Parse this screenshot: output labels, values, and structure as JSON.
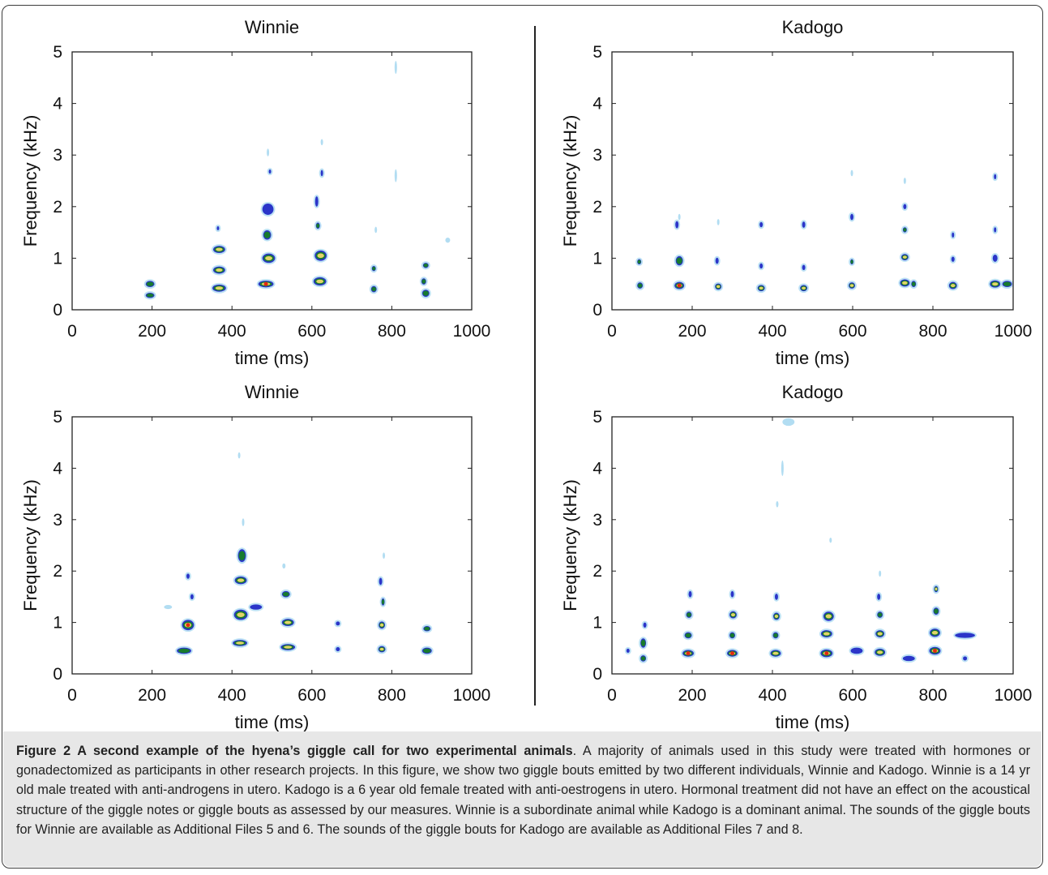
{
  "figure": {
    "caption_title": "Figure 2 A second example of the hyena’s giggle call for two experimental animals",
    "caption_text": ". A majority of animals used in this study were treated with hormones or gonadectomized as participants in other research projects. In this figure, we show two giggle bouts emitted by two different individuals, Winnie and Kadogo. Winnie is a 14 yr old male treated with anti-androgens in utero. Kadogo is a 6 year old female treated with anti-oestrogens in utero. Hormonal treatment did not have an effect on the acoustical structure of the giggle notes or giggle bouts as assessed by our measures. Winnie is a subordinate animal while Kadogo is a dominant animal. The sounds of the giggle bouts for Winnie are available as Additional Files 5 and 6. The sounds of the giggle bouts for Kadogo are available as Additional Files 7 and 8."
  },
  "colors": {
    "blue": "#2b35c9",
    "green": "#177a2e",
    "yellow": "#e3d468",
    "red": "#e22a12",
    "light": "#9fd4ef"
  },
  "chart_data": [
    {
      "type": "heatmap",
      "title": "Winnie",
      "xlabel": "time (ms)",
      "ylabel": "Frequency (kHz)",
      "xlim": [
        0,
        1000
      ],
      "ylim": [
        0,
        5
      ],
      "xticks": [
        0,
        200,
        400,
        600,
        800,
        1000
      ],
      "yticks": [
        0,
        1,
        2,
        3,
        4,
        5
      ],
      "blobs": [
        {
          "t": 195,
          "f": 0.5,
          "w": 22,
          "h": 0.12,
          "level": 2
        },
        {
          "t": 195,
          "f": 0.28,
          "w": 22,
          "h": 0.1,
          "level": 2
        },
        {
          "t": 368,
          "f": 0.42,
          "w": 34,
          "h": 0.14,
          "level": 3
        },
        {
          "t": 368,
          "f": 0.77,
          "w": 30,
          "h": 0.14,
          "level": 3
        },
        {
          "t": 368,
          "f": 1.17,
          "w": 30,
          "h": 0.14,
          "level": 3
        },
        {
          "t": 365,
          "f": 1.58,
          "w": 6,
          "h": 0.08,
          "level": 1
        },
        {
          "t": 485,
          "f": 0.5,
          "w": 38,
          "h": 0.13,
          "level": 4
        },
        {
          "t": 492,
          "f": 1.0,
          "w": 32,
          "h": 0.18,
          "level": 3
        },
        {
          "t": 488,
          "f": 1.45,
          "w": 20,
          "h": 0.18,
          "level": 2
        },
        {
          "t": 490,
          "f": 1.95,
          "w": 28,
          "h": 0.22,
          "level": 1
        },
        {
          "t": 495,
          "f": 2.68,
          "w": 6,
          "h": 0.08,
          "level": 1
        },
        {
          "t": 620,
          "f": 0.55,
          "w": 32,
          "h": 0.16,
          "level": 3
        },
        {
          "t": 622,
          "f": 1.05,
          "w": 30,
          "h": 0.2,
          "level": 3
        },
        {
          "t": 615,
          "f": 1.63,
          "w": 10,
          "h": 0.12,
          "level": 2
        },
        {
          "t": 612,
          "f": 2.1,
          "w": 8,
          "h": 0.2,
          "level": 1
        },
        {
          "t": 625,
          "f": 2.65,
          "w": 6,
          "h": 0.12,
          "level": 1
        },
        {
          "t": 755,
          "f": 0.4,
          "w": 14,
          "h": 0.12,
          "level": 2
        },
        {
          "t": 755,
          "f": 0.8,
          "w": 10,
          "h": 0.1,
          "level": 2
        },
        {
          "t": 885,
          "f": 0.32,
          "w": 18,
          "h": 0.14,
          "level": 2
        },
        {
          "t": 880,
          "f": 0.55,
          "w": 12,
          "h": 0.12,
          "level": 2
        },
        {
          "t": 885,
          "f": 0.86,
          "w": 14,
          "h": 0.1,
          "level": 2
        },
        {
          "t": 810,
          "f": 4.7,
          "w": 4,
          "h": 0.25,
          "level": 0
        },
        {
          "t": 490,
          "f": 3.05,
          "w": 4,
          "h": 0.15,
          "level": 0
        },
        {
          "t": 625,
          "f": 3.25,
          "w": 4,
          "h": 0.12,
          "level": 0
        },
        {
          "t": 810,
          "f": 2.6,
          "w": 4,
          "h": 0.25,
          "level": 0
        },
        {
          "t": 760,
          "f": 1.55,
          "w": 4,
          "h": 0.12,
          "level": 0
        },
        {
          "t": 940,
          "f": 1.35,
          "w": 12,
          "h": 0.1,
          "level": 0
        }
      ]
    },
    {
      "type": "heatmap",
      "title": "Kadogo",
      "xlabel": "time (ms)",
      "ylabel": "Frequency (kHz)",
      "xlim": [
        0,
        1000
      ],
      "ylim": [
        0,
        5
      ],
      "xticks": [
        0,
        200,
        400,
        600,
        800,
        1000
      ],
      "yticks": [
        0,
        1,
        2,
        3,
        4,
        5
      ],
      "blobs": [
        {
          "t": 70,
          "f": 0.47,
          "w": 14,
          "h": 0.12,
          "level": 2
        },
        {
          "t": 68,
          "f": 0.93,
          "w": 10,
          "h": 0.1,
          "level": 2
        },
        {
          "t": 168,
          "f": 0.47,
          "w": 24,
          "h": 0.14,
          "level": 4
        },
        {
          "t": 168,
          "f": 0.95,
          "w": 18,
          "h": 0.18,
          "level": 2
        },
        {
          "t": 162,
          "f": 1.65,
          "w": 8,
          "h": 0.14,
          "level": 1
        },
        {
          "t": 265,
          "f": 0.45,
          "w": 16,
          "h": 0.12,
          "level": 3
        },
        {
          "t": 262,
          "f": 0.95,
          "w": 8,
          "h": 0.12,
          "level": 1
        },
        {
          "t": 372,
          "f": 0.42,
          "w": 18,
          "h": 0.12,
          "level": 3
        },
        {
          "t": 372,
          "f": 0.85,
          "w": 8,
          "h": 0.1,
          "level": 1
        },
        {
          "t": 372,
          "f": 1.65,
          "w": 8,
          "h": 0.1,
          "level": 1
        },
        {
          "t": 478,
          "f": 0.42,
          "w": 18,
          "h": 0.12,
          "level": 3
        },
        {
          "t": 478,
          "f": 0.82,
          "w": 8,
          "h": 0.1,
          "level": 1
        },
        {
          "t": 478,
          "f": 1.65,
          "w": 8,
          "h": 0.12,
          "level": 1
        },
        {
          "t": 598,
          "f": 0.47,
          "w": 16,
          "h": 0.12,
          "level": 3
        },
        {
          "t": 598,
          "f": 0.93,
          "w": 8,
          "h": 0.1,
          "level": 2
        },
        {
          "t": 598,
          "f": 1.8,
          "w": 8,
          "h": 0.12,
          "level": 1
        },
        {
          "t": 730,
          "f": 0.52,
          "w": 24,
          "h": 0.14,
          "level": 3
        },
        {
          "t": 730,
          "f": 1.02,
          "w": 18,
          "h": 0.12,
          "level": 3
        },
        {
          "t": 730,
          "f": 1.55,
          "w": 10,
          "h": 0.1,
          "level": 2
        },
        {
          "t": 730,
          "f": 2.0,
          "w": 8,
          "h": 0.1,
          "level": 1
        },
        {
          "t": 752,
          "f": 0.5,
          "w": 12,
          "h": 0.12,
          "level": 2
        },
        {
          "t": 850,
          "f": 0.47,
          "w": 20,
          "h": 0.14,
          "level": 3
        },
        {
          "t": 850,
          "f": 0.98,
          "w": 8,
          "h": 0.1,
          "level": 1
        },
        {
          "t": 850,
          "f": 1.45,
          "w": 6,
          "h": 0.1,
          "level": 1
        },
        {
          "t": 955,
          "f": 0.5,
          "w": 26,
          "h": 0.14,
          "level": 3
        },
        {
          "t": 955,
          "f": 1.0,
          "w": 12,
          "h": 0.14,
          "level": 1
        },
        {
          "t": 955,
          "f": 1.55,
          "w": 6,
          "h": 0.1,
          "level": 1
        },
        {
          "t": 955,
          "f": 2.58,
          "w": 6,
          "h": 0.1,
          "level": 1
        },
        {
          "t": 985,
          "f": 0.5,
          "w": 24,
          "h": 0.12,
          "level": 2
        },
        {
          "t": 598,
          "f": 2.65,
          "w": 4,
          "h": 0.12,
          "level": 0
        },
        {
          "t": 730,
          "f": 2.5,
          "w": 4,
          "h": 0.12,
          "level": 0
        },
        {
          "t": 168,
          "f": 1.8,
          "w": 6,
          "h": 0.12,
          "level": 0
        },
        {
          "t": 265,
          "f": 1.7,
          "w": 4,
          "h": 0.12,
          "level": 0
        }
      ]
    },
    {
      "type": "heatmap",
      "title": "Winnie",
      "xlabel": "time (ms)",
      "ylabel": "Frequency (kHz)",
      "xlim": [
        0,
        1000
      ],
      "ylim": [
        0,
        5
      ],
      "xticks": [
        0,
        200,
        400,
        600,
        800,
        1000
      ],
      "yticks": [
        0,
        1,
        2,
        3,
        4,
        5
      ],
      "blobs": [
        {
          "t": 290,
          "f": 0.95,
          "w": 30,
          "h": 0.2,
          "level": 4
        },
        {
          "t": 280,
          "f": 0.45,
          "w": 36,
          "h": 0.12,
          "level": 2
        },
        {
          "t": 300,
          "f": 1.5,
          "w": 8,
          "h": 0.1,
          "level": 1
        },
        {
          "t": 290,
          "f": 1.9,
          "w": 8,
          "h": 0.1,
          "level": 1
        },
        {
          "t": 420,
          "f": 0.6,
          "w": 36,
          "h": 0.12,
          "level": 3
        },
        {
          "t": 422,
          "f": 1.15,
          "w": 34,
          "h": 0.2,
          "level": 3
        },
        {
          "t": 422,
          "f": 1.82,
          "w": 30,
          "h": 0.15,
          "level": 3
        },
        {
          "t": 425,
          "f": 2.3,
          "w": 20,
          "h": 0.25,
          "level": 2
        },
        {
          "t": 460,
          "f": 1.3,
          "w": 30,
          "h": 0.1,
          "level": 1
        },
        {
          "t": 540,
          "f": 0.52,
          "w": 36,
          "h": 0.12,
          "level": 3
        },
        {
          "t": 540,
          "f": 1.0,
          "w": 30,
          "h": 0.14,
          "level": 3
        },
        {
          "t": 535,
          "f": 1.55,
          "w": 20,
          "h": 0.12,
          "level": 2
        },
        {
          "t": 665,
          "f": 0.48,
          "w": 10,
          "h": 0.08,
          "level": 1
        },
        {
          "t": 665,
          "f": 0.98,
          "w": 10,
          "h": 0.08,
          "level": 1
        },
        {
          "t": 775,
          "f": 0.48,
          "w": 18,
          "h": 0.12,
          "level": 3
        },
        {
          "t": 775,
          "f": 0.95,
          "w": 16,
          "h": 0.14,
          "level": 3
        },
        {
          "t": 778,
          "f": 1.4,
          "w": 8,
          "h": 0.14,
          "level": 2
        },
        {
          "t": 772,
          "f": 1.8,
          "w": 8,
          "h": 0.14,
          "level": 1
        },
        {
          "t": 888,
          "f": 0.45,
          "w": 24,
          "h": 0.12,
          "level": 2
        },
        {
          "t": 888,
          "f": 0.88,
          "w": 18,
          "h": 0.1,
          "level": 2
        },
        {
          "t": 418,
          "f": 4.25,
          "w": 4,
          "h": 0.12,
          "level": 0
        },
        {
          "t": 428,
          "f": 2.95,
          "w": 6,
          "h": 0.15,
          "level": 0
        },
        {
          "t": 530,
          "f": 2.1,
          "w": 8,
          "h": 0.1,
          "level": 0
        },
        {
          "t": 240,
          "f": 1.3,
          "w": 20,
          "h": 0.08,
          "level": 0
        },
        {
          "t": 780,
          "f": 2.3,
          "w": 6,
          "h": 0.12,
          "level": 0
        }
      ]
    },
    {
      "type": "heatmap",
      "title": "Kadogo",
      "xlabel": "time (ms)",
      "ylabel": "Frequency (kHz)",
      "xlim": [
        0,
        1000
      ],
      "ylim": [
        0,
        5
      ],
      "xticks": [
        0,
        200,
        400,
        600,
        800,
        1000
      ],
      "yticks": [
        0,
        1,
        2,
        3,
        4,
        5
      ],
      "blobs": [
        {
          "t": 78,
          "f": 0.3,
          "w": 14,
          "h": 0.12,
          "level": 2
        },
        {
          "t": 78,
          "f": 0.6,
          "w": 14,
          "h": 0.18,
          "level": 2
        },
        {
          "t": 82,
          "f": 0.95,
          "w": 8,
          "h": 0.1,
          "level": 1
        },
        {
          "t": 40,
          "f": 0.45,
          "w": 8,
          "h": 0.08,
          "level": 1
        },
        {
          "t": 190,
          "f": 0.4,
          "w": 28,
          "h": 0.13,
          "level": 4
        },
        {
          "t": 190,
          "f": 0.75,
          "w": 18,
          "h": 0.12,
          "level": 2
        },
        {
          "t": 192,
          "f": 1.15,
          "w": 14,
          "h": 0.12,
          "level": 2
        },
        {
          "t": 195,
          "f": 1.55,
          "w": 8,
          "h": 0.12,
          "level": 1
        },
        {
          "t": 300,
          "f": 0.4,
          "w": 26,
          "h": 0.13,
          "level": 4
        },
        {
          "t": 300,
          "f": 0.75,
          "w": 14,
          "h": 0.12,
          "level": 2
        },
        {
          "t": 302,
          "f": 1.15,
          "w": 18,
          "h": 0.14,
          "level": 3
        },
        {
          "t": 300,
          "f": 1.55,
          "w": 8,
          "h": 0.12,
          "level": 1
        },
        {
          "t": 408,
          "f": 0.4,
          "w": 26,
          "h": 0.13,
          "level": 3
        },
        {
          "t": 408,
          "f": 0.75,
          "w": 14,
          "h": 0.12,
          "level": 2
        },
        {
          "t": 410,
          "f": 1.12,
          "w": 16,
          "h": 0.14,
          "level": 3
        },
        {
          "t": 410,
          "f": 1.5,
          "w": 8,
          "h": 0.12,
          "level": 1
        },
        {
          "t": 535,
          "f": 0.4,
          "w": 30,
          "h": 0.15,
          "level": 4
        },
        {
          "t": 535,
          "f": 0.78,
          "w": 28,
          "h": 0.14,
          "level": 3
        },
        {
          "t": 540,
          "f": 1.12,
          "w": 26,
          "h": 0.18,
          "level": 3
        },
        {
          "t": 668,
          "f": 0.42,
          "w": 26,
          "h": 0.14,
          "level": 3
        },
        {
          "t": 668,
          "f": 0.78,
          "w": 22,
          "h": 0.14,
          "level": 3
        },
        {
          "t": 668,
          "f": 1.15,
          "w": 14,
          "h": 0.12,
          "level": 2
        },
        {
          "t": 665,
          "f": 1.5,
          "w": 8,
          "h": 0.12,
          "level": 1
        },
        {
          "t": 805,
          "f": 0.45,
          "w": 28,
          "h": 0.15,
          "level": 4
        },
        {
          "t": 805,
          "f": 0.8,
          "w": 26,
          "h": 0.16,
          "level": 3
        },
        {
          "t": 808,
          "f": 1.22,
          "w": 14,
          "h": 0.14,
          "level": 2
        },
        {
          "t": 808,
          "f": 1.65,
          "w": 10,
          "h": 0.12,
          "level": 3
        },
        {
          "t": 740,
          "f": 0.3,
          "w": 30,
          "h": 0.1,
          "level": 1
        },
        {
          "t": 880,
          "f": 0.75,
          "w": 50,
          "h": 0.1,
          "level": 1
        },
        {
          "t": 880,
          "f": 0.3,
          "w": 10,
          "h": 0.08,
          "level": 1
        },
        {
          "t": 610,
          "f": 0.45,
          "w": 30,
          "h": 0.12,
          "level": 1
        },
        {
          "t": 440,
          "f": 4.9,
          "w": 30,
          "h": 0.15,
          "level": 0
        },
        {
          "t": 412,
          "f": 3.3,
          "w": 4,
          "h": 0.12,
          "level": 0
        },
        {
          "t": 425,
          "f": 4.0,
          "w": 4,
          "h": 0.3,
          "level": 0
        },
        {
          "t": 545,
          "f": 2.6,
          "w": 4,
          "h": 0.1,
          "level": 0
        },
        {
          "t": 668,
          "f": 1.95,
          "w": 6,
          "h": 0.12,
          "level": 0
        }
      ]
    }
  ]
}
